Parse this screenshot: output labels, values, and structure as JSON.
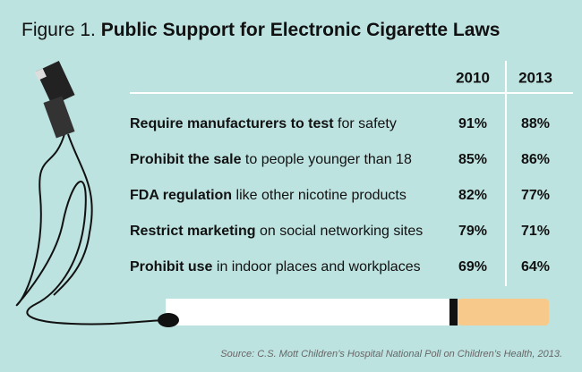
{
  "header": {
    "figure": "Figure 1.",
    "title": "Public Support for Electronic Cigarette Laws"
  },
  "table": {
    "columns": [
      "2010",
      "2013"
    ],
    "rows": [
      {
        "bold": "Require manufacturers to test",
        "rest": " for safety",
        "values": [
          "91%",
          "88%"
        ]
      },
      {
        "bold": "Prohibit the sale",
        "rest": " to people younger than 18",
        "values": [
          "85%",
          "86%"
        ]
      },
      {
        "bold": "FDA regulation",
        "rest": " like other nicotine products",
        "values": [
          "82%",
          "77%"
        ]
      },
      {
        "bold": "Restrict marketing",
        "rest": " on social networking sites",
        "values": [
          "79%",
          "71%"
        ]
      },
      {
        "bold": "Prohibit use",
        "rest": " in indoor places and workplaces",
        "values": [
          "69%",
          "64%"
        ]
      }
    ]
  },
  "source": "Source: C.S. Mott Children’s Hospital National Poll on Children’s Health, 2013."
}
